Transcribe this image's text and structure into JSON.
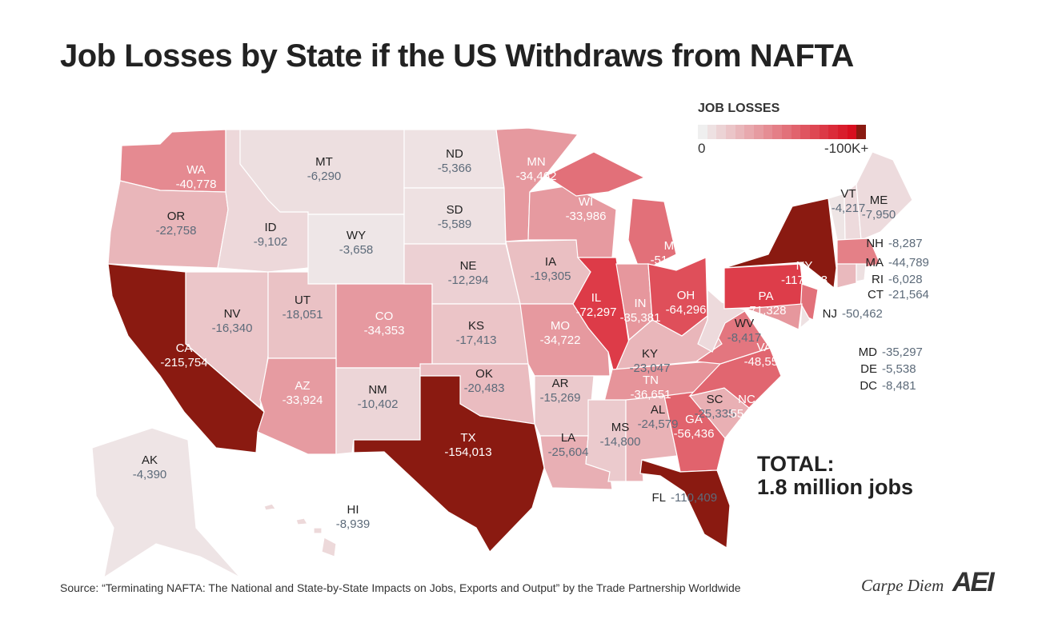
{
  "title": "Job Losses by State if the US Withdraws from NAFTA",
  "legend": {
    "title": "JOB LOSSES",
    "min_label": "0",
    "max_label": "-100K+",
    "low_color": "#efefef",
    "high_color": "#d80f1f",
    "max_color": "#8a1a11"
  },
  "total": {
    "line1": "TOTAL:",
    "line2": "1.8 million jobs"
  },
  "source": "Source: “Terminating NAFTA: The National and State-by-State Impacts on Jobs, Exports and Output” by the Trade Partnership Worldwide",
  "brand": {
    "name": "Carpe Diem",
    "logo": "AEI"
  },
  "states": [
    {
      "abbr": "WA",
      "value": "-40,778"
    },
    {
      "abbr": "OR",
      "value": "-22,758"
    },
    {
      "abbr": "CA",
      "value": "-215,754"
    },
    {
      "abbr": "NV",
      "value": "-16,340"
    },
    {
      "abbr": "ID",
      "value": "-9,102"
    },
    {
      "abbr": "MT",
      "value": "-6,290"
    },
    {
      "abbr": "WY",
      "value": "-3,658"
    },
    {
      "abbr": "UT",
      "value": "-18,051"
    },
    {
      "abbr": "CO",
      "value": "-34,353"
    },
    {
      "abbr": "AZ",
      "value": "-33,924"
    },
    {
      "abbr": "NM",
      "value": "-10,402"
    },
    {
      "abbr": "ND",
      "value": "-5,366"
    },
    {
      "abbr": "SD",
      "value": "-5,589"
    },
    {
      "abbr": "NE",
      "value": "-12,294"
    },
    {
      "abbr": "KS",
      "value": "-17,413"
    },
    {
      "abbr": "OK",
      "value": "-20,483"
    },
    {
      "abbr": "TX",
      "value": "-154,013"
    },
    {
      "abbr": "MN",
      "value": "-34,462"
    },
    {
      "abbr": "IA",
      "value": "-19,305"
    },
    {
      "abbr": "MO",
      "value": "-34,722"
    },
    {
      "abbr": "AR",
      "value": "-15,269"
    },
    {
      "abbr": "LA",
      "value": "-25,604"
    },
    {
      "abbr": "WI",
      "value": "-33,986"
    },
    {
      "abbr": "IL",
      "value": "-72,297"
    },
    {
      "abbr": "MI",
      "value": "-51,192"
    },
    {
      "abbr": "IN",
      "value": "-35,381"
    },
    {
      "abbr": "OH",
      "value": "-64,296"
    },
    {
      "abbr": "KY",
      "value": "-23,047"
    },
    {
      "abbr": "TN",
      "value": "-36,651"
    },
    {
      "abbr": "MS",
      "value": "-14,800"
    },
    {
      "abbr": "AL",
      "value": "-24,579"
    },
    {
      "abbr": "GA",
      "value": "-56,436"
    },
    {
      "abbr": "FL",
      "value": "-110,409"
    },
    {
      "abbr": "SC",
      "value": "-25,335"
    },
    {
      "abbr": "NC",
      "value": "-55,040"
    },
    {
      "abbr": "VA",
      "value": "-48,556"
    },
    {
      "abbr": "WV",
      "value": "-8,417"
    },
    {
      "abbr": "PA",
      "value": "-71,328"
    },
    {
      "abbr": "NY",
      "value": "-117,083"
    },
    {
      "abbr": "NJ",
      "value": "-50,462"
    },
    {
      "abbr": "MD",
      "value": "-35,297"
    },
    {
      "abbr": "DE",
      "value": "-5,538"
    },
    {
      "abbr": "DC",
      "value": "-8,481"
    },
    {
      "abbr": "VT",
      "value": "-4,217"
    },
    {
      "abbr": "NH",
      "value": "-8,287"
    },
    {
      "abbr": "ME",
      "value": "-7,950"
    },
    {
      "abbr": "MA",
      "value": "-44,789"
    },
    {
      "abbr": "CT",
      "value": "-21,564"
    },
    {
      "abbr": "RI",
      "value": "-6,028"
    },
    {
      "abbr": "AK",
      "value": "-4,390"
    },
    {
      "abbr": "HI",
      "value": "-8,939"
    }
  ]
}
